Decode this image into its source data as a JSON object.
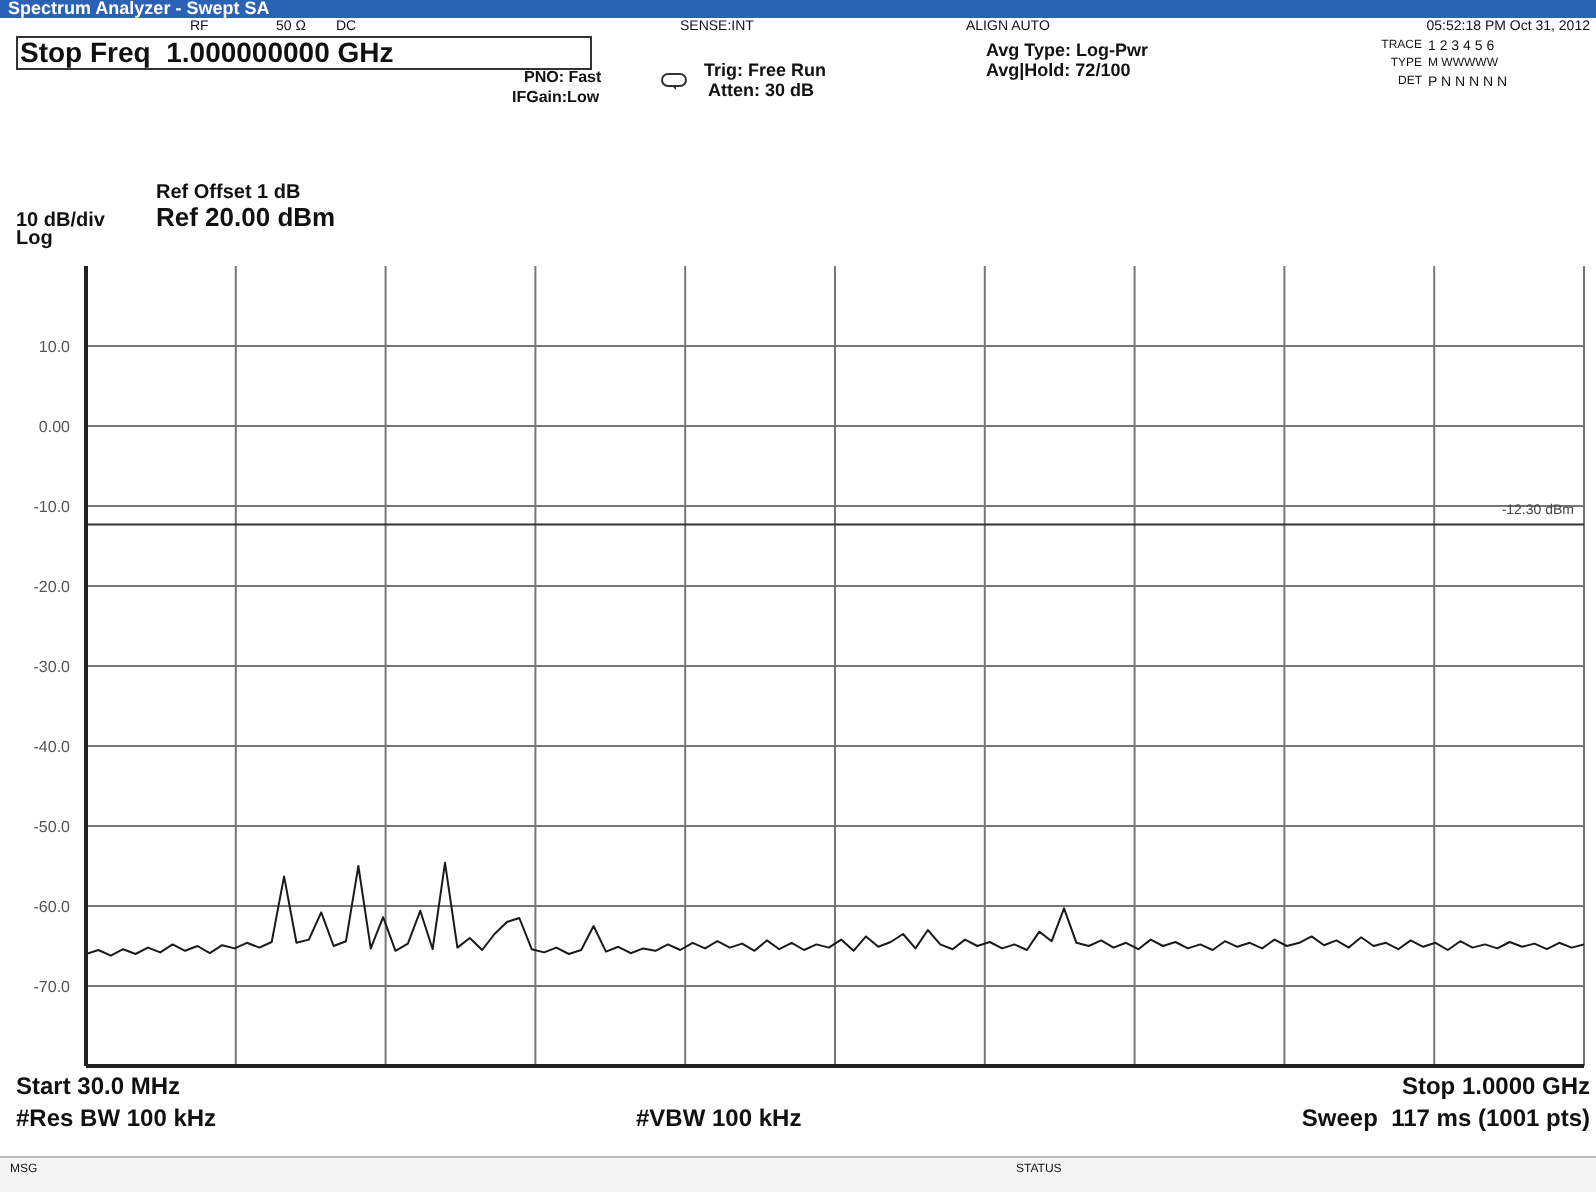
{
  "chart_data": {
    "type": "line",
    "title": "Spectrum Analyzer - Swept SA",
    "categories": [
      null,
      null,
      null,
      null,
      null,
      null,
      null,
      null,
      null,
      null,
      null,
      null,
      null,
      null,
      null,
      null,
      null,
      null,
      null,
      null,
      null,
      null,
      null,
      null,
      null,
      null,
      null,
      null,
      null,
      null,
      null,
      null,
      null,
      null,
      null,
      null,
      null,
      null,
      null,
      null,
      null,
      null,
      null,
      null,
      null,
      null,
      null,
      null,
      null,
      null,
      null,
      null,
      null,
      null,
      null,
      null,
      null,
      null,
      null,
      null,
      null,
      null,
      null,
      null,
      null,
      null,
      null,
      null,
      null,
      null,
      null,
      null,
      null,
      null,
      null,
      null,
      null,
      null,
      null,
      null,
      null,
      null,
      null,
      null,
      null,
      null,
      null,
      null,
      null,
      null,
      null,
      null,
      null,
      null,
      null,
      null,
      null,
      null,
      null,
      null,
      null,
      null,
      null,
      null,
      null,
      null,
      null,
      null,
      null,
      null,
      null,
      null,
      null,
      null,
      null,
      null,
      null,
      null,
      null,
      null,
      null,
      null
    ],
    "ylim": [
      -80,
      20
    ],
    "yticks": [
      {
        "value": 10,
        "label": "10.0"
      },
      {
        "value": 0,
        "label": "0.00"
      },
      {
        "value": -10,
        "label": "-10.0"
      },
      {
        "value": -20,
        "label": "-20.0"
      },
      {
        "value": -30,
        "label": "-30.0"
      },
      {
        "value": -40,
        "label": "-40.0"
      },
      {
        "value": -50,
        "label": "-50.0"
      },
      {
        "value": -60,
        "label": "-60.0"
      },
      {
        "value": -70,
        "label": "-70.0"
      }
    ],
    "tick_labels": "y",
    "grid": true,
    "marker": "none",
    "line_style": "solid",
    "ref_lines": [
      {
        "axis": "y",
        "value": -12.3,
        "label": "-12.30 dBm",
        "color": "#333333"
      }
    ],
    "series": [
      {
        "color": "#1a1a1a",
        "values": [
          -66,
          -65.5,
          -66.2,
          -65.4,
          -66,
          -65.2,
          -65.8,
          -64.8,
          -65.6,
          -65,
          -65.9,
          -64.9,
          -65.3,
          -64.6,
          -65.2,
          -64.5,
          -56.3,
          -64.6,
          -64.2,
          -60.8,
          -65,
          -64.4,
          -55,
          -65.3,
          -61.4,
          -65.6,
          -64.7,
          -60.6,
          -65.4,
          -54.6,
          -65.2,
          -64,
          -65.5,
          -63.5,
          -62,
          -61.5,
          -65.4,
          -65.8,
          -65.2,
          -66,
          -65.5,
          -62.5,
          -65.7,
          -65.1,
          -65.9,
          -65.3,
          -65.6,
          -64.8,
          -65.5,
          -64.6,
          -65.3,
          -64.4,
          -65.2,
          -64.7,
          -65.6,
          -64.3,
          -65.4,
          -64.6,
          -65.5,
          -64.8,
          -65.2,
          -64.2,
          -65.6,
          -63.8,
          -65.1,
          -64.5,
          -63.5,
          -65.3,
          -63,
          -64.8,
          -65.4,
          -64.2,
          -65,
          -64.5,
          -65.3,
          -64.8,
          -65.5,
          -63.2,
          -64.4,
          -60.3,
          -64.6,
          -65,
          -64.3,
          -65.2,
          -64.6,
          -65.4,
          -64.2,
          -65,
          -64.5,
          -65.3,
          -64.8,
          -65.5,
          -64.4,
          -65.1,
          -64.6,
          -65.3,
          -64.2,
          -65,
          -64.6,
          -63.8,
          -64.9,
          -64.3,
          -65.2,
          -63.9,
          -65,
          -64.6,
          -65.4,
          -64.3,
          -65.1,
          -64.6,
          -65.5,
          -64.4,
          -65.2,
          -64.8,
          -65.3,
          -64.5,
          -65.1,
          -64.7,
          -65.4,
          -64.6,
          -65.2,
          -64.8
        ]
      }
    ],
    "annotations": [
      "RF",
      "50 Ω",
      "DC",
      "SENSE:INT",
      "ALIGN AUTO",
      "05:52:18 PM Oct 31, 2012",
      "Stop Freq  1.000000000 GHz",
      "PNO: Fast",
      "IFGain:Low",
      "Trig: Free Run",
      "Atten: 30 dB",
      "Avg Type: Log-Pwr",
      "Avg|Hold: 72/100",
      "TRACE",
      "1 2 3 4 5 6",
      "TYPE",
      "M WWWWW",
      "DET",
      "P N N N N N",
      "Ref Offset 1 dB",
      "Ref 20.00 dBm",
      "10 dB/div",
      "Log",
      "Start 30.0 MHz",
      "Stop 1.0000 GHz",
      "#Res BW 100 kHz",
      "#VBW 100 kHz",
      "Sweep  117 ms (1001 pts)",
      "MSG",
      "STATUS"
    ]
  }
}
